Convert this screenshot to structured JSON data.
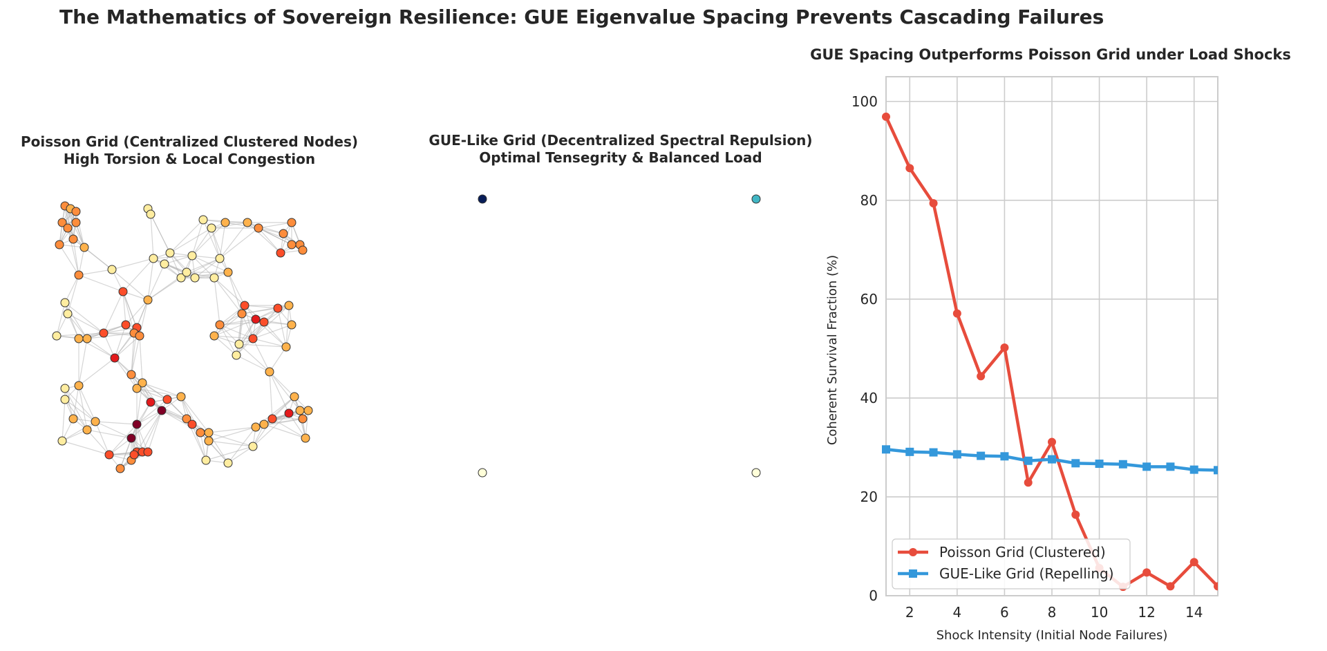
{
  "suptitle": "The Mathematics of Sovereign Resilience: GUE Eigenvalue Spacing Prevents Cascading Failures",
  "panels": {
    "poisson": {
      "title_line1": "Poisson Grid (Centralized Clustered Nodes)",
      "title_line2": "High Torsion & Local Congestion"
    },
    "gue": {
      "title_line1": "GUE-Like Grid (Decentralized Spectral Repulsion)",
      "title_line2": "Optimal Tensegrity & Balanced Load"
    },
    "shock": {
      "title": "GUE Spacing Outperforms Poisson Grid under Load Shocks"
    }
  },
  "colors": {
    "poisson_series": "#e74c3c",
    "gue_series": "#3498db",
    "edge": "#b3b3b3",
    "node_dark": "#800026",
    "node_red": "#e31a1c",
    "node_orange_red": "#fc4e2a",
    "node_orange": "#fd8d3c",
    "node_light": "#feb24c",
    "node_pale": "#ffeda0",
    "gue_node_navy": "#081d58",
    "gue_node_teal": "#41b6c4",
    "gue_node_pale": "#ffffd9"
  },
  "chart_data": [
    {
      "type": "network",
      "title": "Poisson Grid (Centralized Clustered Nodes)\nHigh Torsion & Local Congestion",
      "nodes": [
        {
          "x": 0.06,
          "y": 0.98,
          "load": 3
        },
        {
          "x": 0.08,
          "y": 0.97,
          "load": 2
        },
        {
          "x": 0.1,
          "y": 0.96,
          "load": 3
        },
        {
          "x": 0.05,
          "y": 0.92,
          "load": 3
        },
        {
          "x": 0.07,
          "y": 0.9,
          "load": 3
        },
        {
          "x": 0.1,
          "y": 0.92,
          "load": 3
        },
        {
          "x": 0.04,
          "y": 0.84,
          "load": 3
        },
        {
          "x": 0.09,
          "y": 0.86,
          "load": 3
        },
        {
          "x": 0.13,
          "y": 0.83,
          "load": 2
        },
        {
          "x": 0.11,
          "y": 0.73,
          "load": 3
        },
        {
          "x": 0.23,
          "y": 0.75,
          "load": 1
        },
        {
          "x": 0.27,
          "y": 0.67,
          "load": 4
        },
        {
          "x": 0.36,
          "y": 0.64,
          "load": 2
        },
        {
          "x": 0.06,
          "y": 0.63,
          "load": 1
        },
        {
          "x": 0.07,
          "y": 0.59,
          "load": 1
        },
        {
          "x": 0.03,
          "y": 0.51,
          "load": 1
        },
        {
          "x": 0.11,
          "y": 0.5,
          "load": 2
        },
        {
          "x": 0.14,
          "y": 0.5,
          "load": 2
        },
        {
          "x": 0.2,
          "y": 0.52,
          "load": 4
        },
        {
          "x": 0.28,
          "y": 0.55,
          "load": 4
        },
        {
          "x": 0.32,
          "y": 0.54,
          "load": 4
        },
        {
          "x": 0.31,
          "y": 0.52,
          "load": 3
        },
        {
          "x": 0.33,
          "y": 0.51,
          "load": 3
        },
        {
          "x": 0.24,
          "y": 0.43,
          "load": 5
        },
        {
          "x": 0.3,
          "y": 0.37,
          "load": 3
        },
        {
          "x": 0.34,
          "y": 0.34,
          "load": 2
        },
        {
          "x": 0.32,
          "y": 0.32,
          "load": 2
        },
        {
          "x": 0.06,
          "y": 0.32,
          "load": 1
        },
        {
          "x": 0.06,
          "y": 0.28,
          "load": 1
        },
        {
          "x": 0.11,
          "y": 0.33,
          "load": 2
        },
        {
          "x": 0.09,
          "y": 0.21,
          "load": 2
        },
        {
          "x": 0.17,
          "y": 0.2,
          "load": 2
        },
        {
          "x": 0.14,
          "y": 0.17,
          "load": 2
        },
        {
          "x": 0.05,
          "y": 0.13,
          "load": 1
        },
        {
          "x": 0.22,
          "y": 0.08,
          "load": 4
        },
        {
          "x": 0.26,
          "y": 0.03,
          "load": 3
        },
        {
          "x": 0.3,
          "y": 0.06,
          "load": 3
        },
        {
          "x": 0.32,
          "y": 0.09,
          "load": 4
        },
        {
          "x": 0.34,
          "y": 0.09,
          "load": 4
        },
        {
          "x": 0.36,
          "y": 0.09,
          "load": 4
        },
        {
          "x": 0.31,
          "y": 0.08,
          "load": 4
        },
        {
          "x": 0.32,
          "y": 0.19,
          "load": 6
        },
        {
          "x": 0.3,
          "y": 0.14,
          "load": 6
        },
        {
          "x": 0.37,
          "y": 0.27,
          "load": 5
        },
        {
          "x": 0.41,
          "y": 0.24,
          "load": 6
        },
        {
          "x": 0.43,
          "y": 0.28,
          "load": 4
        },
        {
          "x": 0.48,
          "y": 0.29,
          "load": 2
        },
        {
          "x": 0.5,
          "y": 0.21,
          "load": 3
        },
        {
          "x": 0.52,
          "y": 0.19,
          "load": 4
        },
        {
          "x": 0.55,
          "y": 0.16,
          "load": 3
        },
        {
          "x": 0.58,
          "y": 0.16,
          "load": 2
        },
        {
          "x": 0.58,
          "y": 0.13,
          "load": 2
        },
        {
          "x": 0.57,
          "y": 0.06,
          "load": 1
        },
        {
          "x": 0.65,
          "y": 0.05,
          "load": 1
        },
        {
          "x": 0.74,
          "y": 0.11,
          "load": 1
        },
        {
          "x": 0.75,
          "y": 0.18,
          "load": 2
        },
        {
          "x": 0.78,
          "y": 0.19,
          "load": 2
        },
        {
          "x": 0.81,
          "y": 0.21,
          "load": 4
        },
        {
          "x": 0.87,
          "y": 0.23,
          "load": 5
        },
        {
          "x": 0.91,
          "y": 0.24,
          "load": 2
        },
        {
          "x": 0.94,
          "y": 0.24,
          "load": 2
        },
        {
          "x": 0.92,
          "y": 0.21,
          "load": 3
        },
        {
          "x": 0.89,
          "y": 0.29,
          "load": 2
        },
        {
          "x": 0.93,
          "y": 0.14,
          "load": 2
        },
        {
          "x": 0.8,
          "y": 0.38,
          "load": 2
        },
        {
          "x": 0.68,
          "y": 0.44,
          "load": 1
        },
        {
          "x": 0.6,
          "y": 0.51,
          "load": 2
        },
        {
          "x": 0.62,
          "y": 0.55,
          "load": 3
        },
        {
          "x": 0.69,
          "y": 0.48,
          "load": 1
        },
        {
          "x": 0.7,
          "y": 0.59,
          "load": 3
        },
        {
          "x": 0.71,
          "y": 0.62,
          "load": 4
        },
        {
          "x": 0.75,
          "y": 0.57,
          "load": 5
        },
        {
          "x": 0.78,
          "y": 0.56,
          "load": 4
        },
        {
          "x": 0.83,
          "y": 0.61,
          "load": 4
        },
        {
          "x": 0.87,
          "y": 0.62,
          "load": 2
        },
        {
          "x": 0.88,
          "y": 0.55,
          "load": 2
        },
        {
          "x": 0.74,
          "y": 0.5,
          "load": 4
        },
        {
          "x": 0.86,
          "y": 0.47,
          "load": 2
        },
        {
          "x": 0.48,
          "y": 0.72,
          "load": 1
        },
        {
          "x": 0.5,
          "y": 0.74,
          "load": 1
        },
        {
          "x": 0.42,
          "y": 0.77,
          "load": 1
        },
        {
          "x": 0.53,
          "y": 0.72,
          "load": 1
        },
        {
          "x": 0.6,
          "y": 0.72,
          "load": 1
        },
        {
          "x": 0.62,
          "y": 0.79,
          "load": 1
        },
        {
          "x": 0.65,
          "y": 0.74,
          "load": 2
        },
        {
          "x": 0.56,
          "y": 0.93,
          "load": 1
        },
        {
          "x": 0.59,
          "y": 0.9,
          "load": 1
        },
        {
          "x": 0.64,
          "y": 0.92,
          "load": 2
        },
        {
          "x": 0.72,
          "y": 0.92,
          "load": 2
        },
        {
          "x": 0.76,
          "y": 0.9,
          "load": 3
        },
        {
          "x": 0.88,
          "y": 0.92,
          "load": 3
        },
        {
          "x": 0.85,
          "y": 0.88,
          "load": 3
        },
        {
          "x": 0.88,
          "y": 0.84,
          "load": 3
        },
        {
          "x": 0.91,
          "y": 0.84,
          "load": 3
        },
        {
          "x": 0.92,
          "y": 0.82,
          "load": 3
        },
        {
          "x": 0.84,
          "y": 0.81,
          "load": 4
        },
        {
          "x": 0.36,
          "y": 0.97,
          "load": 1
        },
        {
          "x": 0.37,
          "y": 0.95,
          "load": 1
        },
        {
          "x": 0.38,
          "y": 0.79,
          "load": 1
        },
        {
          "x": 0.44,
          "y": 0.81,
          "load": 1
        },
        {
          "x": 0.52,
          "y": 0.8,
          "load": 1
        }
      ]
    },
    {
      "type": "network",
      "title": "GUE-Like Grid (Decentralized Spectral Repulsion)\nOptimal Tensegrity & Balanced Load",
      "nodes": [
        {
          "x": 0.0,
          "y": 1.0,
          "load": 6
        },
        {
          "x": 1.0,
          "y": 1.0,
          "load": 3
        },
        {
          "x": 0.0,
          "y": 0.0,
          "load": 1
        },
        {
          "x": 1.0,
          "y": 0.0,
          "load": 1
        }
      ]
    },
    {
      "type": "line",
      "title": "GUE Spacing Outperforms Poisson Grid under Load Shocks",
      "xlabel": "Shock Intensity (Initial Node Failures)",
      "ylabel": "Coherent Survival Fraction (%)",
      "xlim": [
        1,
        15
      ],
      "ylim": [
        0,
        105
      ],
      "xticks": [
        2,
        4,
        6,
        8,
        10,
        12,
        14
      ],
      "yticks": [
        0,
        20,
        40,
        60,
        80,
        100
      ],
      "grid": true,
      "legend_position": "lower-left",
      "x": [
        1,
        2,
        3,
        4,
        5,
        6,
        7,
        8,
        9,
        10,
        11,
        12,
        13,
        14,
        15
      ],
      "series": [
        {
          "name": "Poisson Grid (Clustered)",
          "marker": "circle",
          "color": "#e74c3c",
          "values": [
            96.9,
            86.5,
            79.4,
            57.1,
            44.4,
            50.2,
            22.9,
            31.1,
            16.4,
            5.6,
            1.8,
            4.7,
            1.9,
            6.8,
            1.9
          ]
        },
        {
          "name": "GUE-Like Grid (Repelling)",
          "marker": "square",
          "color": "#3498db",
          "values": [
            29.6,
            29.1,
            29.0,
            28.6,
            28.3,
            28.2,
            27.3,
            27.6,
            26.8,
            26.7,
            26.6,
            26.1,
            26.1,
            25.5,
            25.4
          ]
        }
      ]
    }
  ]
}
